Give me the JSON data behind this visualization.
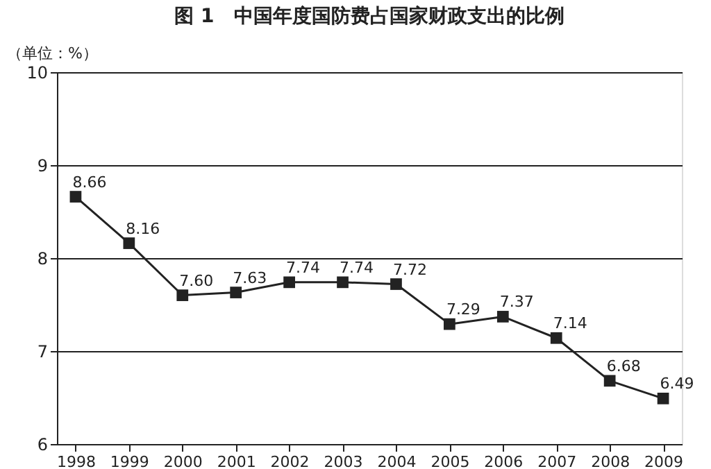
{
  "chart_data": {
    "type": "line",
    "title": "图 1　中国年度国防费占国家财政支出的比例",
    "ylabel": "（单位：%）",
    "categories": [
      "1998",
      "1999",
      "2000",
      "2001",
      "2002",
      "2003",
      "2004",
      "2005",
      "2006",
      "2007",
      "2008",
      "2009"
    ],
    "series": [
      {
        "color": "#222222",
        "values": [
          8.66,
          8.16,
          7.6,
          7.63,
          7.74,
          7.74,
          7.72,
          7.29,
          7.37,
          7.14,
          6.68,
          6.49
        ]
      }
    ],
    "ylim": [
      6,
      10
    ],
    "yticks": [
      6,
      7,
      8,
      9,
      10
    ],
    "grid": "y",
    "marker": "square",
    "line_style": "solid",
    "value_labels": [
      "8.66",
      "8.16",
      "7.60",
      "7.63",
      "7.74",
      "7.74",
      "7.72",
      "7.29",
      "7.37",
      "7.14",
      "6.68",
      "6.49"
    ]
  }
}
